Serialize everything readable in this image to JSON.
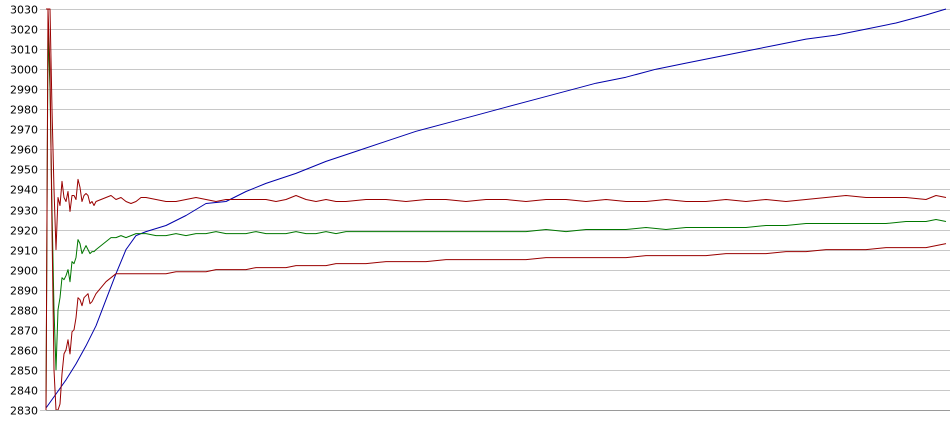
{
  "chart_data": {
    "type": "line",
    "title": "",
    "xlabel": "",
    "ylabel": "",
    "ylim": [
      2830,
      3030
    ],
    "yticks": [
      2830,
      2840,
      2850,
      2860,
      2870,
      2880,
      2890,
      2900,
      2910,
      2920,
      2930,
      2940,
      2950,
      2960,
      2970,
      2980,
      2990,
      3000,
      3010,
      3020,
      3030
    ],
    "xlim": [
      0,
      900
    ],
    "grid": "horizontal",
    "legend": "none",
    "colors": {
      "upper": "#990000",
      "middle": "#007700",
      "lower": "#990000",
      "trend": "#0000aa",
      "grid": "#c8c8c8"
    },
    "series": [
      {
        "key": "trend",
        "x": [
          0,
          10,
          20,
          30,
          40,
          50,
          60,
          70,
          80,
          90,
          100,
          120,
          140,
          160,
          180,
          200,
          220,
          250,
          280,
          310,
          340,
          370,
          400,
          430,
          460,
          490,
          520,
          550,
          580,
          610,
          640,
          670,
          700,
          730,
          760,
          790,
          820,
          850,
          880,
          900
        ],
        "y": [
          2831,
          2838,
          2845,
          2853,
          2862,
          2872,
          2885,
          2898,
          2910,
          2917,
          2919,
          2922,
          2927,
          2933,
          2934,
          2939,
          2943,
          2948,
          2954,
          2959,
          2964,
          2969,
          2973,
          2977,
          2981,
          2985,
          2989,
          2993,
          2996,
          3000,
          3003,
          3006,
          3009,
          3012,
          3015,
          3017,
          3020,
          3023,
          3027,
          3030
        ]
      },
      {
        "key": "upper",
        "x": [
          0,
          2,
          4,
          6,
          8,
          10,
          12,
          14,
          16,
          18,
          20,
          22,
          24,
          26,
          28,
          30,
          32,
          34,
          36,
          38,
          40,
          42,
          44,
          46,
          48,
          50,
          55,
          60,
          65,
          70,
          75,
          80,
          85,
          90,
          95,
          100,
          110,
          120,
          130,
          140,
          150,
          160,
          170,
          180,
          190,
          200,
          210,
          220,
          230,
          240,
          250,
          260,
          270,
          280,
          290,
          300,
          320,
          340,
          360,
          380,
          400,
          420,
          440,
          460,
          480,
          500,
          520,
          540,
          560,
          580,
          600,
          620,
          640,
          660,
          680,
          700,
          720,
          740,
          760,
          780,
          800,
          820,
          840,
          860,
          880,
          890,
          900
        ],
        "y": [
          3030,
          3030,
          3030,
          2980,
          2940,
          2910,
          2936,
          2932,
          2944,
          2936,
          2934,
          2939,
          2929,
          2937,
          2937,
          2935,
          2945,
          2941,
          2934,
          2937,
          2938,
          2937,
          2933,
          2934,
          2932,
          2934,
          2935,
          2936,
          2937,
          2935,
          2936,
          2934,
          2933,
          2934,
          2936,
          2936,
          2935,
          2934,
          2934,
          2935,
          2936,
          2935,
          2934,
          2935,
          2935,
          2935,
          2935,
          2935,
          2934,
          2935,
          2937,
          2935,
          2934,
          2935,
          2934,
          2934,
          2935,
          2935,
          2934,
          2935,
          2935,
          2934,
          2935,
          2935,
          2934,
          2935,
          2935,
          2934,
          2935,
          2934,
          2934,
          2935,
          2934,
          2934,
          2935,
          2934,
          2935,
          2934,
          2935,
          2936,
          2937,
          2936,
          2936,
          2936,
          2935,
          2937,
          2936
        ]
      },
      {
        "key": "middle",
        "x": [
          0,
          2,
          4,
          6,
          8,
          10,
          12,
          14,
          16,
          18,
          20,
          22,
          24,
          26,
          28,
          30,
          32,
          34,
          36,
          38,
          40,
          42,
          44,
          46,
          48,
          50,
          55,
          60,
          65,
          70,
          75,
          80,
          85,
          90,
          95,
          100,
          110,
          120,
          130,
          140,
          150,
          160,
          170,
          180,
          190,
          200,
          210,
          220,
          230,
          240,
          250,
          260,
          270,
          280,
          290,
          300,
          320,
          340,
          360,
          380,
          400,
          420,
          440,
          460,
          480,
          500,
          520,
          540,
          560,
          580,
          600,
          620,
          640,
          660,
          680,
          700,
          720,
          740,
          760,
          780,
          800,
          820,
          840,
          860,
          880,
          890,
          900
        ],
        "y": [
          2830,
          3020,
          2990,
          2930,
          2880,
          2850,
          2880,
          2886,
          2896,
          2895,
          2897,
          2900,
          2894,
          2904,
          2903,
          2906,
          2915,
          2913,
          2908,
          2910,
          2912,
          2910,
          2908,
          2909,
          2909,
          2910,
          2912,
          2914,
          2916,
          2916,
          2917,
          2916,
          2917,
          2918,
          2918,
          2918,
          2917,
          2917,
          2918,
          2917,
          2918,
          2918,
          2919,
          2918,
          2918,
          2918,
          2919,
          2918,
          2918,
          2918,
          2919,
          2918,
          2918,
          2919,
          2918,
          2919,
          2919,
          2919,
          2919,
          2919,
          2919,
          2919,
          2919,
          2919,
          2919,
          2920,
          2919,
          2920,
          2920,
          2920,
          2921,
          2920,
          2921,
          2921,
          2921,
          2921,
          2922,
          2922,
          2923,
          2923,
          2923,
          2923,
          2923,
          2924,
          2924,
          2925,
          2924
        ]
      },
      {
        "key": "lower",
        "x": [
          0,
          2,
          4,
          6,
          8,
          10,
          12,
          14,
          16,
          18,
          20,
          22,
          24,
          26,
          28,
          30,
          32,
          34,
          36,
          38,
          40,
          42,
          44,
          46,
          48,
          50,
          55,
          60,
          65,
          70,
          75,
          80,
          85,
          90,
          95,
          100,
          110,
          120,
          130,
          140,
          150,
          160,
          170,
          180,
          190,
          200,
          210,
          220,
          230,
          240,
          250,
          260,
          270,
          280,
          290,
          300,
          320,
          340,
          360,
          380,
          400,
          420,
          440,
          460,
          480,
          500,
          520,
          540,
          560,
          580,
          600,
          620,
          640,
          660,
          680,
          700,
          720,
          740,
          760,
          780,
          800,
          820,
          840,
          860,
          880,
          890,
          900
        ],
        "y": [
          2830,
          3030,
          3000,
          2920,
          2850,
          2830,
          2830,
          2833,
          2848,
          2858,
          2860,
          2865,
          2858,
          2869,
          2870,
          2876,
          2886,
          2885,
          2882,
          2886,
          2887,
          2888,
          2883,
          2884,
          2886,
          2888,
          2891,
          2894,
          2896,
          2898,
          2898,
          2898,
          2898,
          2898,
          2898,
          2898,
          2898,
          2898,
          2899,
          2899,
          2899,
          2899,
          2900,
          2900,
          2900,
          2900,
          2901,
          2901,
          2901,
          2901,
          2902,
          2902,
          2902,
          2902,
          2903,
          2903,
          2903,
          2904,
          2904,
          2904,
          2905,
          2905,
          2905,
          2905,
          2905,
          2906,
          2906,
          2906,
          2906,
          2906,
          2907,
          2907,
          2907,
          2907,
          2908,
          2908,
          2908,
          2909,
          2909,
          2910,
          2910,
          2910,
          2911,
          2911,
          2911,
          2912,
          2913
        ]
      }
    ]
  }
}
